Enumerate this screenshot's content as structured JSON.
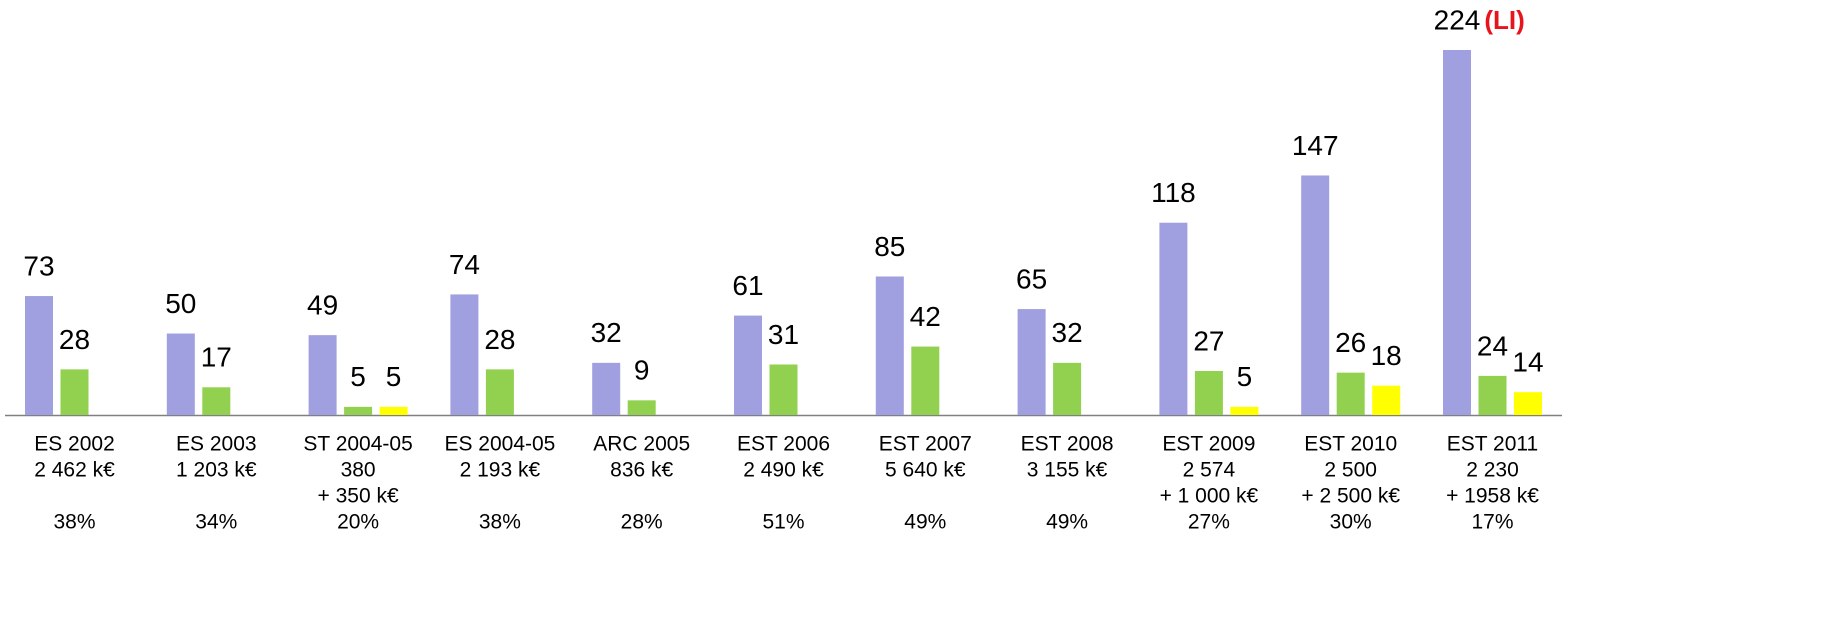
{
  "chart_data": {
    "type": "bar",
    "categories": [
      [
        "ES 2002",
        "2 462 k€"
      ],
      [
        "ES 2003",
        "1 203 k€"
      ],
      [
        "ST 2004-05",
        "380",
        "+ 350 k€"
      ],
      [
        "ES 2004-05",
        "2 193 k€"
      ],
      [
        "ARC 2005",
        "836 k€"
      ],
      [
        "EST 2006",
        "2 490 k€"
      ],
      [
        "EST 2007",
        "5 640 k€"
      ],
      [
        "EST 2008",
        "3 155 k€"
      ],
      [
        "EST 2009",
        "2 574",
        "+ 1 000 k€"
      ],
      [
        "EST 2010",
        "2 500",
        "+ 2 500 k€"
      ],
      [
        "EST 2011",
        "2 230",
        "+ 1958 k€"
      ]
    ],
    "category_shares": [
      "38%",
      "34%",
      "20%",
      "38%",
      "28%",
      "51%",
      "49%",
      "49%",
      "27%",
      "30%",
      "17%"
    ],
    "series": [
      {
        "color": "#a09fdf",
        "values": [
          73,
          50,
          49,
          74,
          32,
          61,
          85,
          65,
          118,
          147,
          224
        ]
      },
      {
        "color": "#92d050",
        "values": [
          28,
          17,
          5,
          28,
          9,
          31,
          42,
          32,
          27,
          26,
          24
        ]
      },
      {
        "color": "#ffff00",
        "values": [
          null,
          null,
          5,
          null,
          null,
          null,
          null,
          null,
          5,
          18,
          14
        ]
      }
    ],
    "annotations": [
      {
        "text": "(LI)",
        "color": "#e8141c"
      }
    ],
    "ylim": [
      0,
      224
    ]
  }
}
